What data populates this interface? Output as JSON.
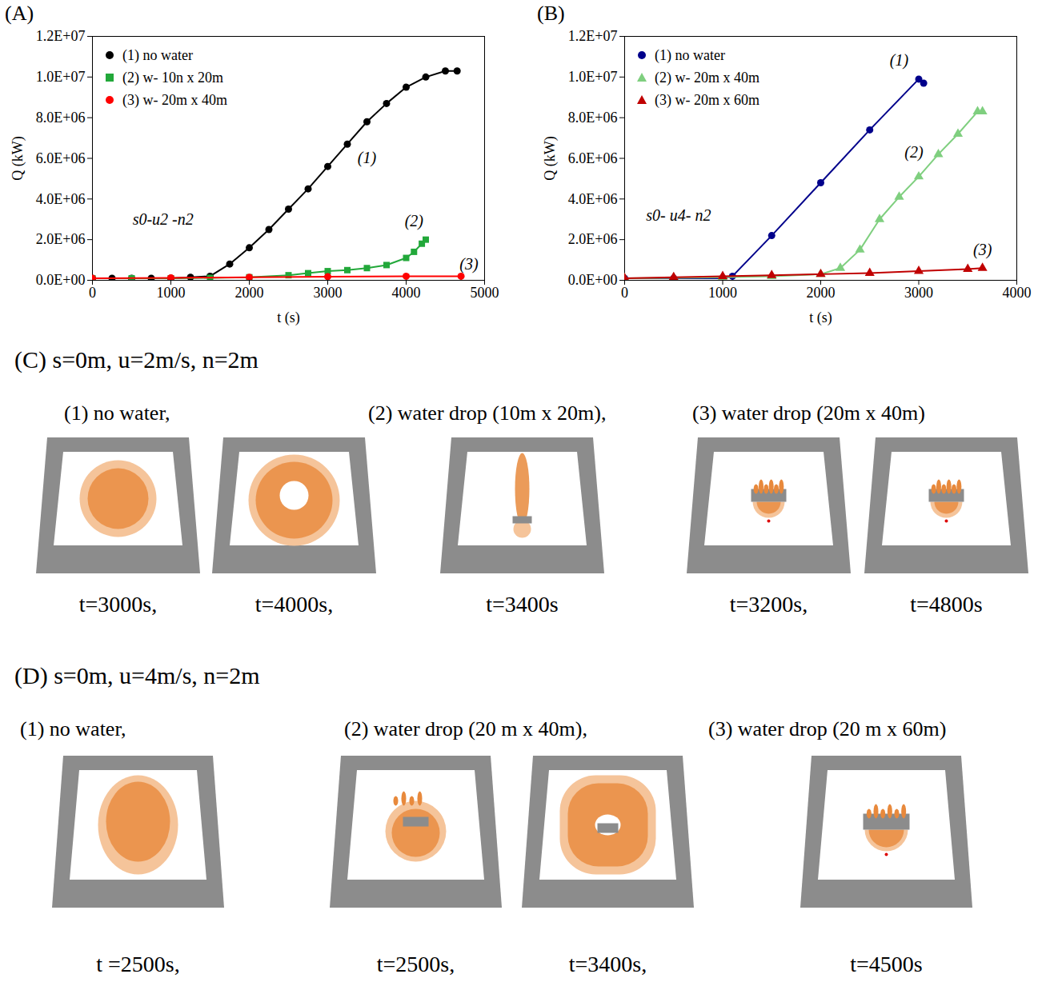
{
  "chart_data": [
    {
      "type": "line",
      "title": "(A)",
      "x_label": "t (s)",
      "y_label": "Q (kW)",
      "xlim": [
        0,
        5000
      ],
      "xticks": [
        0,
        1000,
        2000,
        3000,
        4000,
        5000
      ],
      "ylim": [
        0,
        12000000
      ],
      "yticks": [
        {
          "value": 0,
          "label": "0.0E+00"
        },
        {
          "value": 2000000,
          "label": "2.0E+06"
        },
        {
          "value": 4000000,
          "label": "4.0E+06"
        },
        {
          "value": 6000000,
          "label": "6.0E+06"
        },
        {
          "value": 8000000,
          "label": "8.0E+06"
        },
        {
          "value": 10000000,
          "label": "1.0E+07"
        },
        {
          "value": 12000000,
          "label": "1.2E+07"
        }
      ],
      "legend": "top-left",
      "grid": false,
      "series": [
        {
          "name": "(1) no water",
          "color": "#000000",
          "marker": "circle",
          "x": [
            0,
            250,
            500,
            750,
            1000,
            1250,
            1500,
            1750,
            2000,
            2250,
            2500,
            2750,
            3000,
            3250,
            3500,
            3750,
            4000,
            4250,
            4500,
            4650
          ],
          "values": [
            100000,
            100000,
            100000,
            100000,
            100000,
            150000,
            200000,
            800000,
            1600000,
            2500000,
            3500000,
            4500000,
            5600000,
            6700000,
            7800000,
            8700000,
            9500000,
            10000000,
            10300000,
            10300000
          ]
        },
        {
          "name": "(2) w- 10n x 20m",
          "color": "#22a83a",
          "marker": "square",
          "x": [
            0,
            500,
            1000,
            1500,
            2000,
            2500,
            2750,
            3000,
            3250,
            3500,
            3750,
            4000,
            4100,
            4200,
            4250
          ],
          "values": [
            100000,
            100000,
            100000,
            120000,
            150000,
            250000,
            350000,
            450000,
            500000,
            600000,
            750000,
            1100000,
            1400000,
            1800000,
            2000000
          ]
        },
        {
          "name": "(3) w- 20m x 40m",
          "color": "#ff0000",
          "marker": "circle",
          "x": [
            0,
            1000,
            2000,
            3000,
            4000,
            4700
          ],
          "values": [
            100000,
            120000,
            150000,
            180000,
            200000,
            200000
          ]
        }
      ],
      "annotations": [
        {
          "text": "(1)",
          "x": 3500,
          "y": 6000000
        },
        {
          "text": "(2)",
          "x": 4100,
          "y": 2900000
        },
        {
          "text": "(3)",
          "x": 4800,
          "y": 800000
        },
        {
          "text": "s0-u2 -n2",
          "x": 900,
          "y": 3000000
        }
      ]
    },
    {
      "type": "line",
      "title": "(B)",
      "x_label": "t (s)",
      "y_label": "Q (kW)",
      "xlim": [
        0,
        4000
      ],
      "xticks": [
        0,
        1000,
        2000,
        3000,
        4000
      ],
      "ylim": [
        0,
        12000000
      ],
      "yticks": [
        {
          "value": 0,
          "label": "0.0E+00"
        },
        {
          "value": 2000000,
          "label": "2.0E+06"
        },
        {
          "value": 4000000,
          "label": "4.0E+06"
        },
        {
          "value": 6000000,
          "label": "6.0E+06"
        },
        {
          "value": 8000000,
          "label": "8.0E+06"
        },
        {
          "value": 10000000,
          "label": "1.0E+07"
        },
        {
          "value": 12000000,
          "label": "1.2E+07"
        }
      ],
      "legend": "top-left",
      "grid": false,
      "series": [
        {
          "name": "(1) no water",
          "color": "#00008b",
          "marker": "circle",
          "x": [
            0,
            500,
            1000,
            1100,
            1500,
            2000,
            2500,
            3000,
            3050
          ],
          "values": [
            100000,
            100000,
            100000,
            200000,
            2200000,
            4800000,
            7400000,
            9900000,
            9700000
          ]
        },
        {
          "name": "(2) w- 20m x 40m",
          "color": "#7fcf7f",
          "marker": "triangle",
          "x": [
            0,
            500,
            1000,
            1500,
            2000,
            2200,
            2400,
            2600,
            2800,
            3000,
            3200,
            3400,
            3600,
            3650
          ],
          "values": [
            100000,
            120000,
            150000,
            200000,
            300000,
            600000,
            1500000,
            3000000,
            4100000,
            5100000,
            6200000,
            7200000,
            8300000,
            8300000
          ]
        },
        {
          "name": "(3) w- 20m x 60m",
          "color": "#c00000",
          "marker": "triangle",
          "x": [
            0,
            500,
            1000,
            1500,
            2000,
            2500,
            3000,
            3500,
            3650
          ],
          "values": [
            100000,
            150000,
            200000,
            250000,
            300000,
            350000,
            450000,
            550000,
            600000
          ]
        }
      ],
      "annotations": [
        {
          "text": "(1)",
          "x": 2800,
          "y": 10800000
        },
        {
          "text": "(2)",
          "x": 2950,
          "y": 6300000
        },
        {
          "text": "(3)",
          "x": 3650,
          "y": 1500000
        },
        {
          "text": "s0- u4- n2",
          "x": 550,
          "y": 3200000
        }
      ]
    }
  ],
  "panels": [
    {
      "title": "(C) s=0m, u=2m/s, n=2m",
      "groups": [
        {
          "title": "(1)  no water,",
          "images": [
            "t=3000s,",
            "t=4000s,"
          ]
        },
        {
          "title": "(2) water drop (10m x 20m),",
          "images": [
            "t=3400s"
          ]
        },
        {
          "title": "(3) water drop (20m x 40m)",
          "images": [
            "t=3200s,",
            "t=4800s"
          ]
        }
      ]
    },
    {
      "title": "(D) s=0m, u=4m/s, n=2m",
      "groups": [
        {
          "title": "(1)  no water,",
          "images": [
            "t =2500s,"
          ]
        },
        {
          "title": "(2) water drop (20 m x 40m),",
          "images": [
            "t=2500s,",
            "t=3400s,"
          ]
        },
        {
          "title": "(3) water drop (20 m x 60m)",
          "images": [
            "t=4500s"
          ]
        }
      ]
    }
  ]
}
